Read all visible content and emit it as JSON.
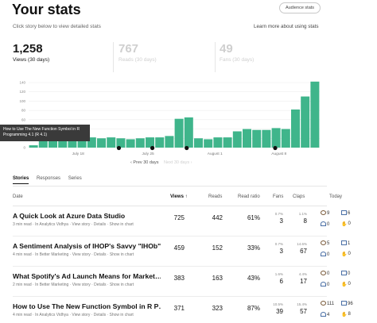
{
  "header": {
    "title": "Your stats",
    "audience_button": "Audience stats",
    "subtitle": "Click story below to view detailed stats",
    "learn_more": "Learn more about using stats"
  },
  "summary": [
    {
      "value": "1,258",
      "label": "Views (30 days)",
      "active": true
    },
    {
      "value": "767",
      "label": "Reads (30 days)",
      "active": false
    },
    {
      "value": "49",
      "label": "Fans (30 days)",
      "active": false
    }
  ],
  "chart_data": {
    "type": "bar",
    "y_ticks": [
      "0",
      "20",
      "40",
      "60",
      "80",
      "100",
      "120",
      "140"
    ],
    "ylim": [
      0,
      140
    ],
    "x_labels": [
      "July 18",
      "July 25",
      "August 1",
      "August 8"
    ],
    "values": [
      5,
      40,
      42,
      18,
      15,
      20,
      22,
      20,
      22,
      20,
      18,
      20,
      22,
      22,
      25,
      62,
      65,
      20,
      18,
      22,
      22,
      35,
      40,
      38,
      38,
      42,
      40,
      82,
      110,
      142
    ],
    "bar_color": "#3fb58b"
  },
  "tooltip": "How to Use The New Function Symbol in R Programming 4.1 (R 4.1)",
  "chart_nav": {
    "prev": "Prev 30 days",
    "next": "Next 30 days"
  },
  "tabs": [
    "Stories",
    "Responses",
    "Series"
  ],
  "table": {
    "headers": {
      "date": "Date",
      "views": "Views ↑",
      "reads": "Reads",
      "ratio": "Read ratio",
      "fans": "Fans",
      "claps": "Claps",
      "today": "Today"
    },
    "rows": [
      {
        "title": "A Quick Look at Azure Data Studio",
        "meta": "3 min read · In Analytics Vidhya · View story · Details · Show in chart",
        "views": "725",
        "reads": "442",
        "ratio": "61%",
        "fans_pct": "0.7%",
        "fans": "3",
        "claps_pct": "1.1%",
        "claps": "8",
        "today": {
          "eye": "9",
          "book": "6",
          "person": "0",
          "clap": "0"
        }
      },
      {
        "title": "A Sentiment Analysis of IHOP's Savvy \"IHOb\"",
        "meta": "4 min read · In Better Marketing · View story · Details · Show in chart",
        "views": "459",
        "reads": "152",
        "ratio": "33%",
        "fans_pct": "0.7%",
        "fans": "3",
        "claps_pct": "14.6%",
        "claps": "67",
        "today": {
          "eye": "5",
          "book": "1",
          "person": "0",
          "clap": "0"
        }
      },
      {
        "title": "What Spotify's Ad Launch Means for Market…",
        "meta": "2 min read · In Better Marketing · View story · Details · Show in chart",
        "views": "383",
        "reads": "163",
        "ratio": "43%",
        "fans_pct": "1.6%",
        "fans": "6",
        "claps_pct": "4.4%",
        "claps": "17",
        "today": {
          "eye": "0",
          "book": "0",
          "person": "0",
          "clap": "0"
        }
      },
      {
        "title": "How to Use The New Function Symbol in R P…",
        "meta": "4 min read · In Analytics Vidhya · View story · Details · Show in chart",
        "views": "371",
        "reads": "323",
        "ratio": "87%",
        "fans_pct": "10.5%",
        "fans": "39",
        "claps_pct": "15.4%",
        "claps": "57",
        "today": {
          "eye": "111",
          "book": "96",
          "person": "4",
          "clap": "8"
        }
      }
    ]
  }
}
